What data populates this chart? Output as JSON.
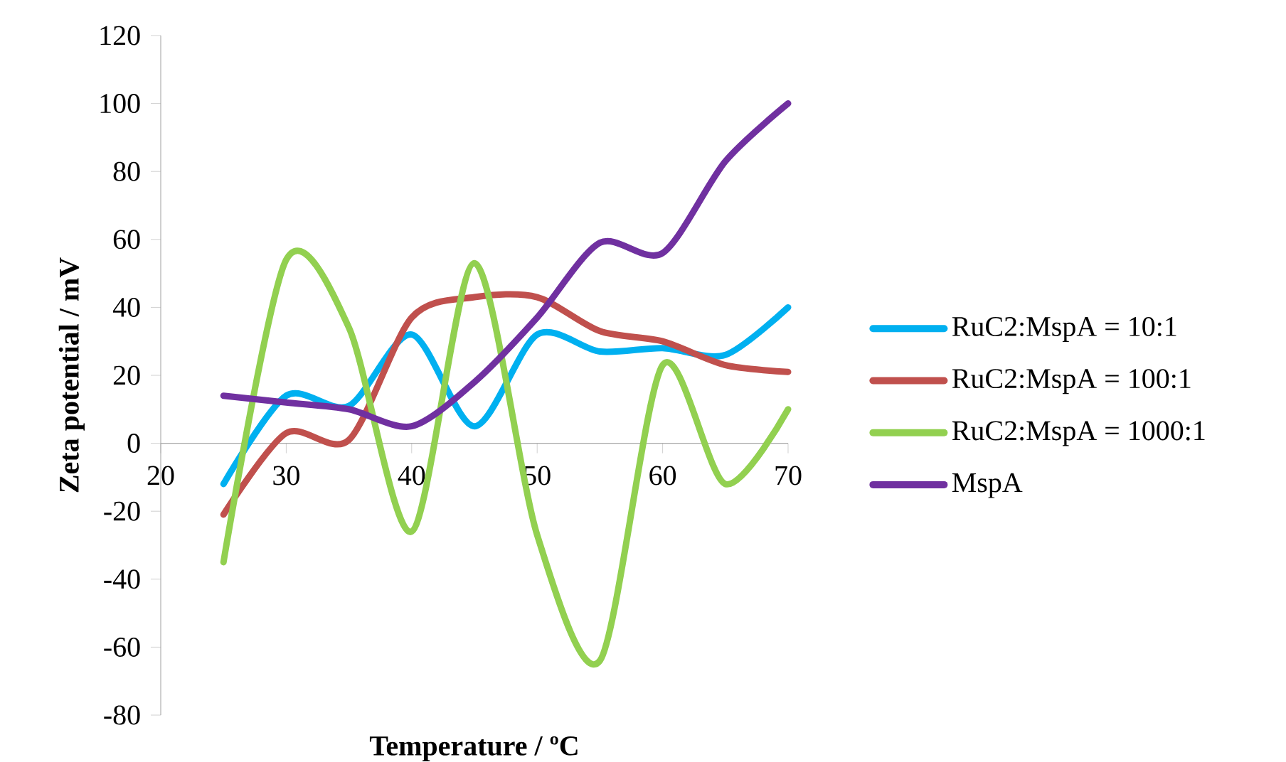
{
  "chart_data": {
    "type": "line",
    "xlabel": "Temperature / ºC",
    "ylabel": "Zeta potential / mV",
    "x": [
      25,
      30,
      35,
      40,
      45,
      50,
      55,
      60,
      65,
      70
    ],
    "series": [
      {
        "name": "RuC2:MspA = 10:1",
        "color": "#00b0f0",
        "values": [
          -12,
          14,
          11,
          32,
          5,
          32,
          27,
          28,
          26,
          40
        ]
      },
      {
        "name": "RuC2:MspA = 100:1",
        "color": "#c0504d",
        "values": [
          -21,
          3,
          1,
          37,
          43,
          43,
          33,
          30,
          23,
          21
        ]
      },
      {
        "name": "RuC2:MspA = 1000:1",
        "color": "#92d050",
        "values": [
          -35,
          54,
          34,
          -26,
          53,
          -27,
          -64,
          23,
          -12,
          10
        ]
      },
      {
        "name": "MspA",
        "color": "#7030a0",
        "values": [
          14,
          12,
          10,
          5,
          18,
          37,
          59,
          56,
          83,
          100
        ]
      }
    ],
    "xlim": [
      20,
      70
    ],
    "xticks": [
      20,
      30,
      40,
      50,
      60,
      70
    ],
    "ylim": [
      -80,
      120
    ],
    "yticks": [
      -80,
      -60,
      -40,
      -20,
      0,
      20,
      40,
      60,
      80,
      100,
      120
    ],
    "grid": false,
    "legend": "right",
    "marker": "none",
    "line_style": "solid"
  }
}
